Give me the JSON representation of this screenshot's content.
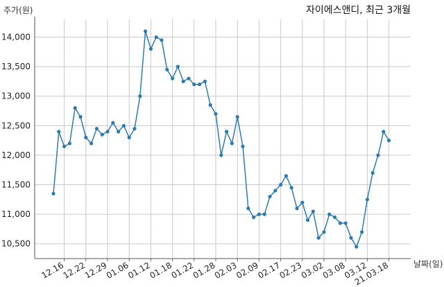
{
  "chart_data": {
    "type": "line",
    "title": "자이에스앤디, 최근 3개월",
    "ylabel": "주가(원)",
    "xlabel": "날짜(일)",
    "ylim": [
      10250,
      14300
    ],
    "yticks": [
      10500,
      11000,
      11500,
      12000,
      12500,
      13000,
      13500,
      14000
    ],
    "ytick_labels": [
      "10,500",
      "11,000",
      "11,500",
      "12,000",
      "12,500",
      "13,000",
      "13,500",
      "14,000"
    ],
    "xtick_labels": [
      "12.16",
      "12.22",
      "12.29",
      "01.06",
      "01.12",
      "01.18",
      "01.22",
      "01.28",
      "02.03",
      "02.09",
      "02.17",
      "02.23",
      "03.02",
      "03.08",
      "03.12",
      "21.03.18"
    ],
    "xtick_indices": [
      2,
      6,
      10,
      14,
      18,
      22,
      26,
      30,
      34,
      38,
      42,
      46,
      50,
      54,
      58,
      62
    ],
    "grid": true,
    "line_color": "#2b7bb0",
    "values": [
      11350,
      12400,
      12150,
      12200,
      12800,
      12650,
      12300,
      12200,
      12450,
      12350,
      12400,
      12550,
      12400,
      12500,
      12300,
      12450,
      13000,
      14100,
      13800,
      14000,
      13950,
      13450,
      13300,
      13500,
      13250,
      13300,
      13200,
      13200,
      13250,
      12850,
      12700,
      12000,
      12400,
      12200,
      12650,
      12150,
      11100,
      10950,
      11000,
      11000,
      11300,
      11400,
      11500,
      11650,
      11450,
      11100,
      11200,
      10900,
      11050,
      10600,
      10700,
      11000,
      10950,
      10850,
      10850,
      10600,
      10450,
      10700,
      11250,
      11700,
      12000,
      12400,
      12250
    ]
  }
}
